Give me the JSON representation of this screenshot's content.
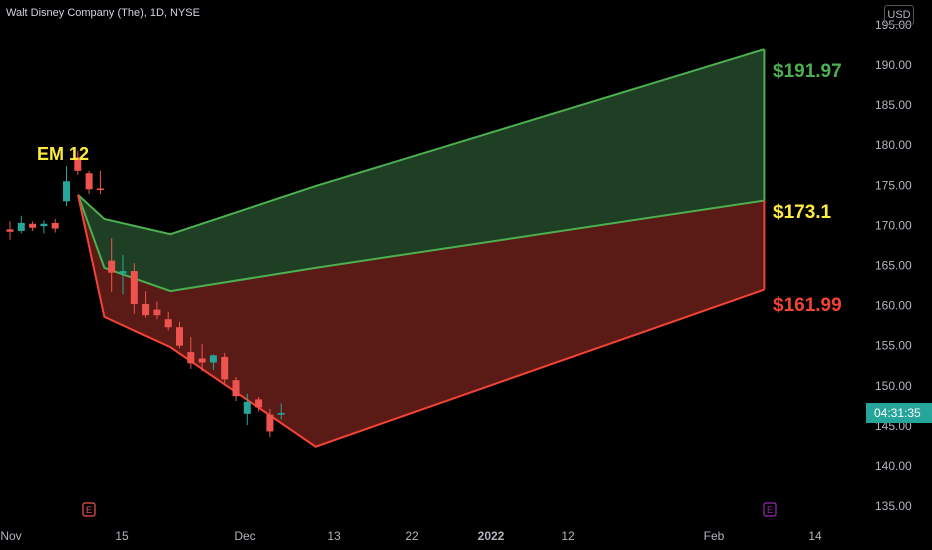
{
  "header": {
    "symbol_title": "Walt Disney Company (The), 1D, NYSE",
    "currency_button": "USD"
  },
  "price_label": {
    "time": "04:31:35"
  },
  "colors": {
    "bull": "#26a69a",
    "bear": "#ef5350",
    "upper_fill": "#1e3f23",
    "lower_fill": "#5a1a16",
    "green_line": "#4caf50",
    "red_line": "#f44336",
    "em_text": "#ffeb3b"
  },
  "chart_data": {
    "type": "candlestick",
    "y_ticks": [
      "195.00",
      "190.00",
      "185.00",
      "180.00",
      "175.00",
      "170.00",
      "165.00",
      "160.00",
      "155.00",
      "150.00",
      "145.00",
      "140.00",
      "135.00"
    ],
    "y_tick_values": [
      195,
      190,
      185,
      180,
      175,
      170,
      165,
      160,
      155,
      150,
      145,
      140,
      135
    ],
    "x_ticks": [
      "Nov",
      "15",
      "Dec",
      "13",
      "22",
      "2022",
      "12",
      "Feb",
      "14"
    ],
    "ylim": [
      134.5,
      199
    ],
    "annotations": {
      "em_label": "EM 12",
      "upper_target": "$191.97",
      "mid_target": "$173.1",
      "lower_target": "$161.99"
    },
    "events": [
      {
        "label": "E",
        "color": "#ef5350"
      },
      {
        "label": "E",
        "color": "#9c27b0"
      }
    ],
    "candles": [
      {
        "o": 169.5,
        "h": 170.5,
        "l": 168.2,
        "c": 169.2
      },
      {
        "o": 169.3,
        "h": 171.2,
        "l": 169.0,
        "c": 170.3
      },
      {
        "o": 170.2,
        "h": 170.5,
        "l": 169.3,
        "c": 169.7
      },
      {
        "o": 169.9,
        "h": 170.6,
        "l": 169.0,
        "c": 170.2
      },
      {
        "o": 170.3,
        "h": 170.8,
        "l": 169.1,
        "c": 169.6
      },
      {
        "o": 173.0,
        "h": 177.4,
        "l": 172.4,
        "c": 175.5
      },
      {
        "o": 178.5,
        "h": 179.3,
        "l": 176.3,
        "c": 176.8
      },
      {
        "o": 176.5,
        "h": 176.8,
        "l": 173.9,
        "c": 174.5
      },
      {
        "o": 174.6,
        "h": 176.8,
        "l": 173.9,
        "c": 174.4
      },
      {
        "o": 165.6,
        "h": 168.4,
        "l": 161.7,
        "c": 164.1
      },
      {
        "o": 164.0,
        "h": 166.3,
        "l": 161.4,
        "c": 164.3
      },
      {
        "o": 164.3,
        "h": 165.3,
        "l": 159.0,
        "c": 160.2
      },
      {
        "o": 160.2,
        "h": 161.8,
        "l": 158.5,
        "c": 158.8
      },
      {
        "o": 159.5,
        "h": 160.5,
        "l": 158.3,
        "c": 158.8
      },
      {
        "o": 158.3,
        "h": 159.2,
        "l": 156.9,
        "c": 157.3
      },
      {
        "o": 157.3,
        "h": 158.0,
        "l": 154.7,
        "c": 155.0
      },
      {
        "o": 154.2,
        "h": 156.1,
        "l": 152.1,
        "c": 152.8
      },
      {
        "o": 153.4,
        "h": 155.2,
        "l": 151.8,
        "c": 152.9
      },
      {
        "o": 152.9,
        "h": 153.9,
        "l": 152.0,
        "c": 153.8
      },
      {
        "o": 153.6,
        "h": 154.1,
        "l": 150.3,
        "c": 150.8
      },
      {
        "o": 150.7,
        "h": 151.1,
        "l": 148.1,
        "c": 148.7
      },
      {
        "o": 146.5,
        "h": 149.0,
        "l": 145.1,
        "c": 148.0
      },
      {
        "o": 148.3,
        "h": 148.6,
        "l": 146.8,
        "c": 147.3
      },
      {
        "o": 146.4,
        "h": 147.1,
        "l": 143.6,
        "c": 144.3
      },
      {
        "o": 146.4,
        "h": 147.8,
        "l": 145.8,
        "c": 146.6
      }
    ],
    "series": [
      {
        "points": [
          [
            173.8,
            0
          ],
          [
            170.8,
            2
          ],
          [
            168.9,
            7
          ],
          [
            174.9,
            18
          ],
          [
            191.97,
            52
          ]
        ]
      },
      {
        "points": [
          [
            173.8,
            0
          ],
          [
            164.7,
            2
          ],
          [
            161.8,
            7
          ],
          [
            164.7,
            18
          ],
          [
            173.1,
            52
          ]
        ]
      },
      {
        "points": [
          [
            173.8,
            0
          ],
          [
            158.6,
            2
          ],
          [
            154.8,
            7
          ],
          [
            142.4,
            18
          ],
          [
            161.99,
            52
          ]
        ]
      }
    ]
  }
}
